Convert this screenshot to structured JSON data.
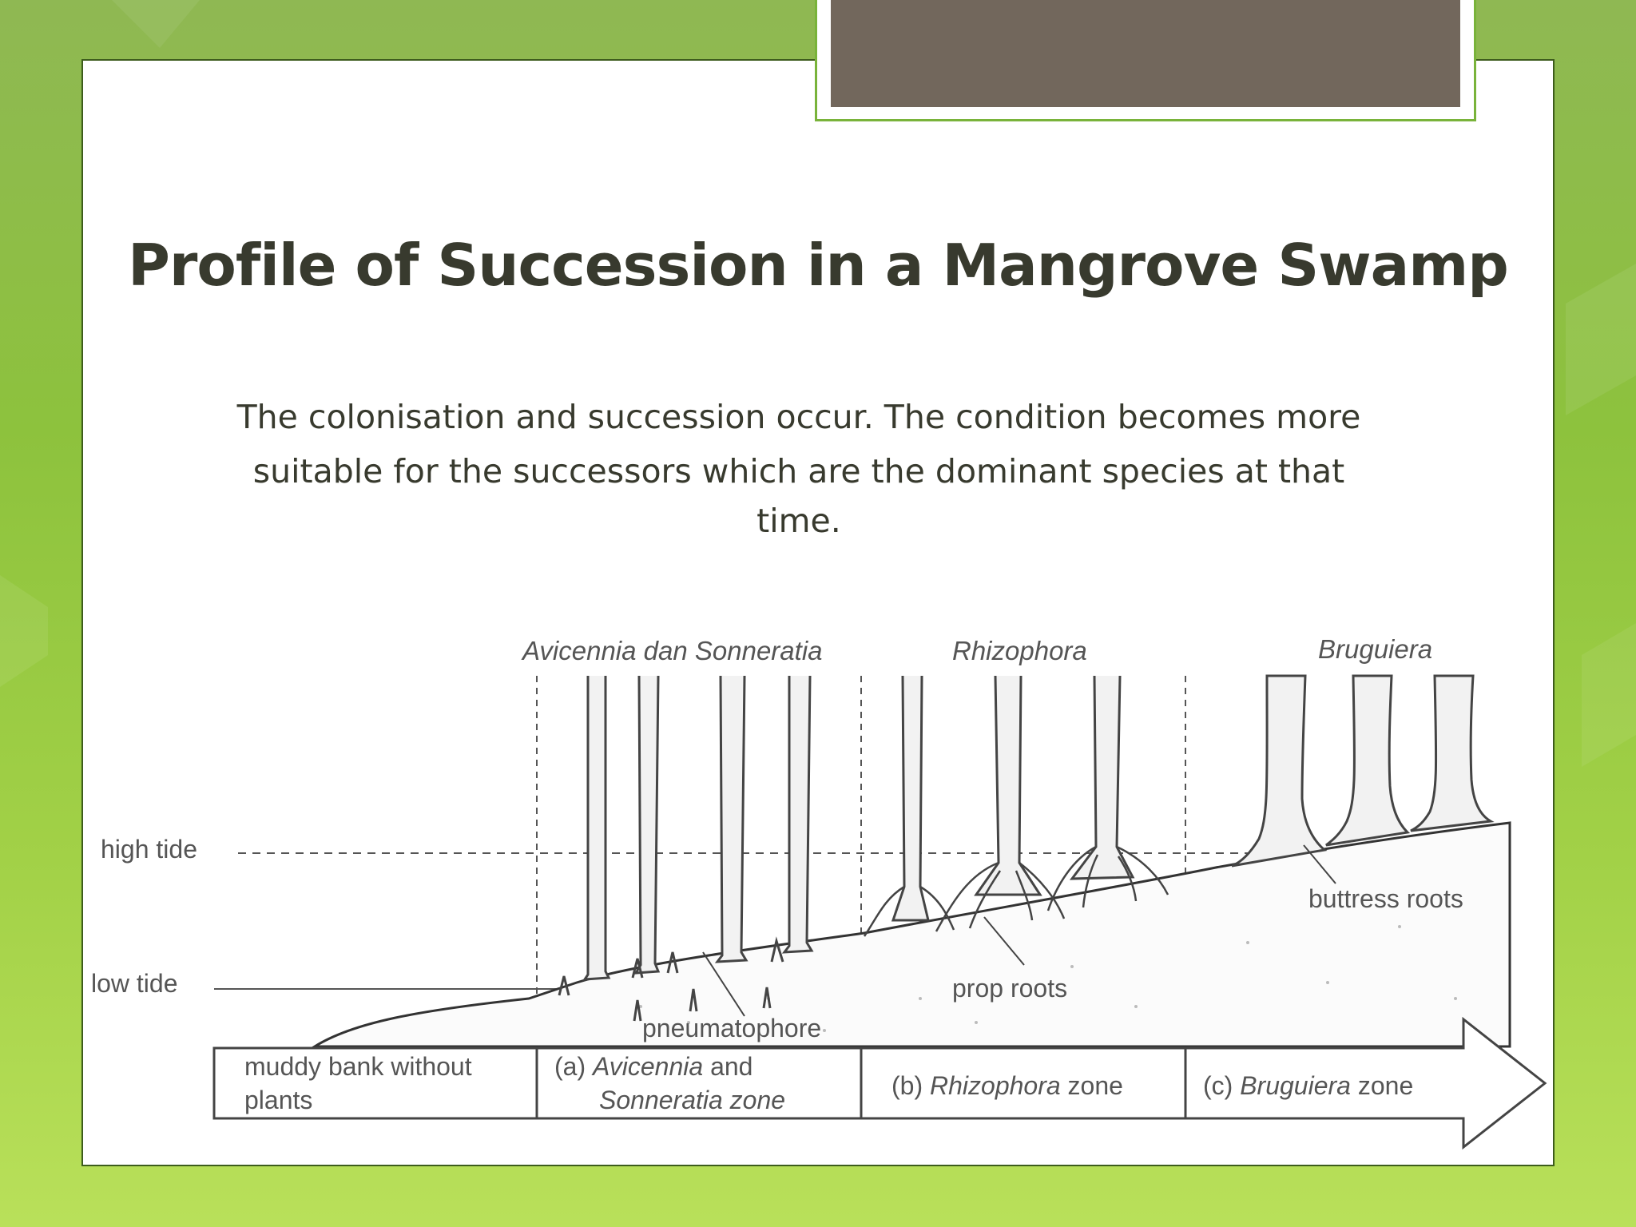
{
  "slide": {
    "title": "Profile of Succession in a Mangrove Swamp",
    "body_line1": "The colonisation and succession occur. The condition becomes more",
    "body_line2": "suitable for the successors which are the dominant species at that",
    "body_line3": "time."
  },
  "diagram": {
    "species_labels": [
      "Avicennia dan Sonneratia",
      "Rhizophora",
      "Bruguiera"
    ],
    "tide_labels": {
      "high": "high tide",
      "low": "low tide"
    },
    "annotations": {
      "pneumatophore": "pneumatophore",
      "prop_roots": "prop roots",
      "buttress_roots": "buttress roots"
    },
    "zones": {
      "muddy_line1": "muddy bank without",
      "muddy_line2": "plants",
      "a_prefix": "(a)",
      "a_name": "Avicennia",
      "a_suffix": "and",
      "a_line2": "Sonneratia zone",
      "b_prefix": "(b)",
      "b_name": "Rhizophora",
      "b_suffix": "zone",
      "c_prefix": "(c)",
      "c_name": "Bruguiera",
      "c_suffix": "zone"
    }
  },
  "colors": {
    "title": "#383a2e",
    "tab": "#72675c",
    "accent_green": "#79b33a"
  }
}
